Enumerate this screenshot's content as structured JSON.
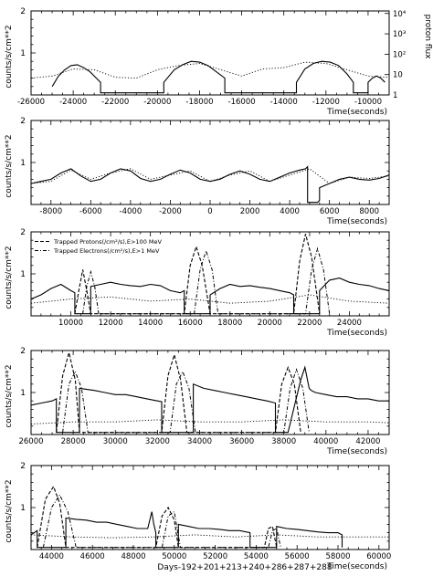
{
  "caption": "Days-192+201+213+240+286+287+288",
  "chart_data": [
    {
      "type": "line",
      "xlabel": "Time(seconds)",
      "ylabel": "counts/s/cm**2",
      "xlim": [
        -26000,
        -9000
      ],
      "ylim": [
        0,
        2
      ],
      "xticks": [
        -26000,
        -24000,
        -22000,
        -20000,
        -18000,
        -16000,
        -14000,
        -12000,
        -10000
      ],
      "yticks": [
        1,
        2
      ],
      "right_axis": {
        "label": "proton flux",
        "ticks": [
          "1",
          "10",
          "10²",
          "10³",
          "10⁴"
        ]
      },
      "series": [
        {
          "style": "solid",
          "x": [
            -25000,
            -24700,
            -24400,
            -24100,
            -23800,
            -23500,
            -23200,
            -22900,
            -22700,
            -22700,
            -19700,
            -19700,
            -19200,
            -18800,
            -18400,
            -18000,
            -17600,
            -17200,
            -16800,
            -16800,
            -13400,
            -13400,
            -13000,
            -12600,
            -12200,
            -11800,
            -11400,
            -11000,
            -10700,
            -10700,
            -10000,
            -10000,
            -9800,
            -9600,
            -9400,
            -9200
          ],
          "y": [
            0.2,
            0.45,
            0.6,
            0.7,
            0.72,
            0.65,
            0.55,
            0.4,
            0.3,
            0.05,
            0.05,
            0.3,
            0.6,
            0.72,
            0.8,
            0.78,
            0.7,
            0.55,
            0.4,
            0.05,
            0.05,
            0.3,
            0.62,
            0.75,
            0.8,
            0.78,
            0.7,
            0.5,
            0.3,
            0.05,
            0.05,
            0.3,
            0.4,
            0.45,
            0.4,
            0.3
          ]
        },
        {
          "style": "dotted",
          "x": [
            -26000,
            -25000,
            -24000,
            -23000,
            -22000,
            -21000,
            -20000,
            -19000,
            -18000,
            -17000,
            -16000,
            -15000,
            -14000,
            -13000,
            -12000,
            -11000,
            -10000,
            -9000
          ],
          "y": [
            0.4,
            0.45,
            0.62,
            0.6,
            0.42,
            0.4,
            0.6,
            0.7,
            0.75,
            0.6,
            0.45,
            0.62,
            0.65,
            0.78,
            0.75,
            0.6,
            0.45,
            0.42
          ]
        }
      ]
    },
    {
      "type": "line",
      "xlabel": "Time(seconds)",
      "ylabel": "counts/s/cm**2",
      "xlim": [
        -9000,
        9000
      ],
      "ylim": [
        0,
        2
      ],
      "xticks": [
        -8000,
        -6000,
        -4000,
        -2000,
        0,
        2000,
        4000,
        6000,
        8000
      ],
      "yticks": [
        1,
        2
      ],
      "series": [
        {
          "style": "solid",
          "x": [
            -9000,
            -8500,
            -8000,
            -7500,
            -7000,
            -6500,
            -6000,
            -5500,
            -5000,
            -4500,
            -4000,
            -3500,
            -3000,
            -2500,
            -2000,
            -1500,
            -1000,
            -500,
            0,
            500,
            1000,
            1500,
            2000,
            2500,
            3000,
            3500,
            4000,
            4500,
            4800,
            4900,
            4900,
            5400,
            5500,
            5500,
            6000,
            6500,
            7000,
            7500,
            8000,
            8500,
            9000
          ],
          "y": [
            0.5,
            0.55,
            0.6,
            0.75,
            0.85,
            0.68,
            0.55,
            0.6,
            0.75,
            0.85,
            0.8,
            0.62,
            0.55,
            0.6,
            0.72,
            0.82,
            0.75,
            0.6,
            0.55,
            0.6,
            0.72,
            0.8,
            0.72,
            0.6,
            0.55,
            0.65,
            0.75,
            0.82,
            0.85,
            0.9,
            0.05,
            0.05,
            0.1,
            0.4,
            0.5,
            0.6,
            0.65,
            0.6,
            0.58,
            0.62,
            0.7
          ]
        },
        {
          "style": "dotted",
          "x": [
            -9000,
            -8000,
            -7000,
            -6000,
            -5000,
            -4000,
            -3000,
            -2000,
            -1000,
            0,
            1000,
            2000,
            3000,
            4000,
            5000,
            6000,
            7000,
            8000,
            9000
          ],
          "y": [
            0.5,
            0.55,
            0.82,
            0.6,
            0.75,
            0.85,
            0.6,
            0.7,
            0.8,
            0.55,
            0.7,
            0.8,
            0.55,
            0.7,
            0.85,
            0.5,
            0.65,
            0.62,
            0.68
          ]
        }
      ]
    },
    {
      "type": "line",
      "xlabel": "Time(seconds)",
      "ylabel": "counts/s/cm**2",
      "xlim": [
        8000,
        26000
      ],
      "ylim": [
        0,
        2
      ],
      "xticks": [
        10000,
        12000,
        14000,
        16000,
        18000,
        20000,
        22000,
        24000
      ],
      "yticks": [
        1,
        2
      ],
      "legend": [
        "Trapped Protons(/cm²/s),E>100 MeV",
        "Trapped Electrons(/cm²/s),E>1 MeV"
      ],
      "series": [
        {
          "style": "solid",
          "x": [
            8000,
            8500,
            9000,
            9500,
            10000,
            10200,
            10200,
            11000,
            11000,
            11500,
            12000,
            12500,
            13000,
            13500,
            14000,
            14500,
            15000,
            15500,
            15700,
            15700,
            17000,
            17000,
            17500,
            18000,
            18500,
            19000,
            19500,
            20000,
            20500,
            21000,
            21200,
            21200,
            22500,
            22500,
            23000,
            23500,
            24000,
            24500,
            25000,
            25500,
            26000
          ],
          "y": [
            0.4,
            0.5,
            0.65,
            0.75,
            0.6,
            0.55,
            0.05,
            0.05,
            0.7,
            0.75,
            0.8,
            0.75,
            0.72,
            0.7,
            0.75,
            0.72,
            0.6,
            0.55,
            0.6,
            0.05,
            0.05,
            0.5,
            0.65,
            0.75,
            0.7,
            0.72,
            0.68,
            0.65,
            0.6,
            0.55,
            0.5,
            0.05,
            0.05,
            0.6,
            0.85,
            0.9,
            0.8,
            0.75,
            0.72,
            0.65,
            0.6
          ]
        },
        {
          "style": "dotted",
          "x": [
            8000,
            10000,
            12000,
            14000,
            16000,
            18000,
            20000,
            22000,
            24000,
            26000
          ],
          "y": [
            0.3,
            0.4,
            0.45,
            0.35,
            0.4,
            0.3,
            0.35,
            0.5,
            0.35,
            0.3
          ]
        },
        {
          "style": "dashed",
          "x": [
            10200,
            10400,
            10600,
            10800,
            11000,
            15700,
            16000,
            16300,
            16600,
            17000,
            21200,
            21500,
            21800,
            22100,
            22500
          ],
          "y": [
            0.05,
            0.6,
            1.1,
            0.6,
            0.05,
            0.05,
            1.2,
            1.65,
            1.2,
            0.05,
            0.05,
            1.3,
            1.95,
            1.4,
            0.05
          ]
        },
        {
          "style": "dashdot",
          "x": [
            10600,
            10800,
            11000,
            11200,
            11400,
            16200,
            16500,
            16800,
            17100,
            17400,
            21800,
            22100,
            22400,
            22700,
            23000
          ],
          "y": [
            0.05,
            0.7,
            1.05,
            0.7,
            0.05,
            0.05,
            1.1,
            1.55,
            1.1,
            0.05,
            0.05,
            1.1,
            1.6,
            1.1,
            0.05
          ]
        }
      ]
    },
    {
      "type": "line",
      "xlabel": "Time(seconds)",
      "ylabel": "counts/s/cm**2",
      "xlim": [
        26000,
        43000
      ],
      "ylim": [
        0,
        2
      ],
      "xticks": [
        26000,
        28000,
        30000,
        32000,
        34000,
        36000,
        38000,
        40000,
        42000
      ],
      "yticks": [
        1,
        2
      ],
      "series": [
        {
          "style": "solid",
          "x": [
            26000,
            26500,
            27000,
            27200,
            27200,
            28300,
            28300,
            29000,
            29500,
            30000,
            30500,
            31000,
            31500,
            32000,
            32200,
            32200,
            33700,
            33700,
            34200,
            34700,
            35200,
            35700,
            36200,
            36700,
            37200,
            37600,
            37600,
            38200,
            38800,
            39000,
            39200,
            39300,
            39500,
            40000,
            40500,
            41000,
            41500,
            42000,
            42500,
            43000
          ],
          "y": [
            0.7,
            0.75,
            0.8,
            0.85,
            0.05,
            0.05,
            1.1,
            1.05,
            1.0,
            0.95,
            0.95,
            0.9,
            0.85,
            0.8,
            0.78,
            0.05,
            0.05,
            1.2,
            1.1,
            1.05,
            1.0,
            0.95,
            0.9,
            0.85,
            0.8,
            0.75,
            0.05,
            0.05,
            1.3,
            1.6,
            1.1,
            1.05,
            1.0,
            0.95,
            0.9,
            0.9,
            0.85,
            0.85,
            0.8,
            0.8
          ]
        },
        {
          "style": "dotted",
          "x": [
            26000,
            28000,
            30000,
            32000,
            34000,
            36000,
            38000,
            40000,
            42000,
            43000
          ],
          "y": [
            0.25,
            0.3,
            0.3,
            0.35,
            0.3,
            0.3,
            0.35,
            0.3,
            0.3,
            0.28
          ]
        },
        {
          "style": "dashed",
          "x": [
            27200,
            27500,
            27800,
            28100,
            28300,
            32200,
            32500,
            32800,
            33100,
            33400,
            37600,
            37900,
            38200,
            38500,
            38800
          ],
          "y": [
            0.05,
            1.4,
            1.95,
            1.3,
            0.05,
            0.05,
            1.4,
            1.9,
            1.3,
            0.05,
            0.05,
            1.2,
            1.6,
            1.2,
            0.05
          ]
        },
        {
          "style": "dashdot",
          "x": [
            27500,
            27800,
            28100,
            28400,
            28700,
            32600,
            32900,
            33200,
            33500,
            33800,
            38000,
            38300,
            38600,
            38900,
            39200
          ],
          "y": [
            0.05,
            1.2,
            1.5,
            1.1,
            0.05,
            0.05,
            1.2,
            1.5,
            1.1,
            0.05,
            0.05,
            1.1,
            1.55,
            1.1,
            0.05
          ]
        }
      ]
    },
    {
      "type": "line",
      "xlabel": "Time(seconds)",
      "ylabel": "counts/s/cm**2",
      "xlim": [
        43000,
        60500
      ],
      "ylim": [
        0,
        2
      ],
      "xticks": [
        44000,
        46000,
        48000,
        50000,
        52000,
        54000,
        56000,
        58000,
        60000
      ],
      "yticks": [
        1,
        2
      ],
      "series": [
        {
          "style": "solid",
          "x": [
            43000,
            43300,
            43300,
            44700,
            44700,
            45200,
            45700,
            46200,
            46700,
            47200,
            47700,
            48200,
            48700,
            48900,
            49000,
            49100,
            49100,
            50200,
            50200,
            50700,
            51200,
            51700,
            52200,
            52700,
            53200,
            53700,
            53700,
            55000,
            55000,
            55500,
            56000,
            56500,
            57000,
            57500,
            58000,
            58200,
            58200
          ],
          "y": [
            0.35,
            0.45,
            0.05,
            0.05,
            0.75,
            0.72,
            0.7,
            0.65,
            0.65,
            0.6,
            0.55,
            0.5,
            0.5,
            0.9,
            0.6,
            0.4,
            0.05,
            0.05,
            0.6,
            0.55,
            0.5,
            0.5,
            0.48,
            0.45,
            0.45,
            0.4,
            0.05,
            0.05,
            0.55,
            0.5,
            0.48,
            0.45,
            0.42,
            0.4,
            0.4,
            0.35,
            0.05
          ]
        },
        {
          "style": "dotted",
          "x": [
            43000,
            45000,
            47000,
            49000,
            51000,
            53000,
            55000,
            57000,
            59000,
            60500
          ],
          "y": [
            0.35,
            0.3,
            0.28,
            0.3,
            0.35,
            0.3,
            0.35,
            0.3,
            0.3,
            0.3
          ]
        },
        {
          "style": "dashed",
          "x": [
            43300,
            43700,
            44100,
            44400,
            44700,
            49100,
            49400,
            49700,
            50000,
            50200,
            54400,
            54600,
            54800,
            55000
          ],
          "y": [
            0.05,
            1.2,
            1.5,
            1.1,
            0.05,
            0.05,
            0.8,
            1.0,
            0.7,
            0.05,
            0.05,
            0.5,
            0.55,
            0.05
          ]
        },
        {
          "style": "dashdot",
          "x": [
            43600,
            44000,
            44400,
            44800,
            45200,
            49400,
            49700,
            50000,
            50300,
            54600,
            54800,
            55000,
            55200
          ],
          "y": [
            0.05,
            1.0,
            1.3,
            0.9,
            0.05,
            0.05,
            0.8,
            0.9,
            0.05,
            0.05,
            0.45,
            0.5,
            0.05
          ]
        }
      ]
    }
  ]
}
